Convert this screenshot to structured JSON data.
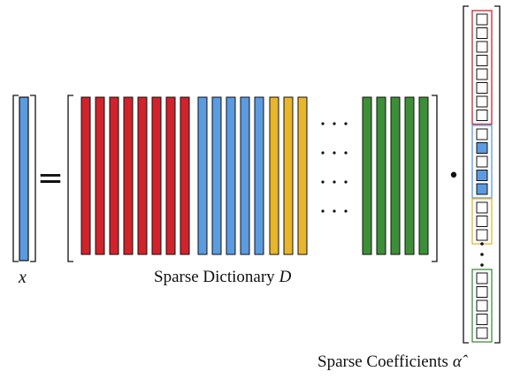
{
  "labels": {
    "x_symbol": "x",
    "dictionary_text": "Sparse Dictionary",
    "dictionary_symbol": "D",
    "coefficients_text": "Sparse Coefficients",
    "coefficients_symbol": "α̂"
  },
  "symbols": {
    "equals": "=",
    "multiply": "•",
    "ellipsis": "⋯",
    "vertical_ellipsis": "⋮"
  },
  "colors": {
    "red": "#d0232b",
    "blue": "#5b9be0",
    "yellow": "#e8b62c",
    "green": "#3d8f37",
    "outline": "#111111"
  },
  "dictionary": {
    "groups": [
      {
        "color": "red",
        "columns": 8
      },
      {
        "color": "blue",
        "columns": 5
      },
      {
        "color": "yellow",
        "columns": 3
      },
      {
        "color": "green",
        "columns": 5
      }
    ],
    "ellipsis_rows": 4
  },
  "coefficients": {
    "groups": [
      {
        "color": "red",
        "cells": [
          "empty",
          "empty",
          "empty",
          "empty",
          "empty",
          "empty",
          "empty",
          "empty"
        ]
      },
      {
        "color": "blue",
        "cells": [
          "empty",
          "filled",
          "empty",
          "filled",
          "filled"
        ]
      },
      {
        "color": "yellow",
        "cells": [
          "empty",
          "empty",
          "empty"
        ]
      },
      {
        "color": "green",
        "cells": [
          "empty",
          "empty",
          "empty",
          "empty",
          "empty"
        ]
      }
    ],
    "ellipsis_dots": 3
  }
}
